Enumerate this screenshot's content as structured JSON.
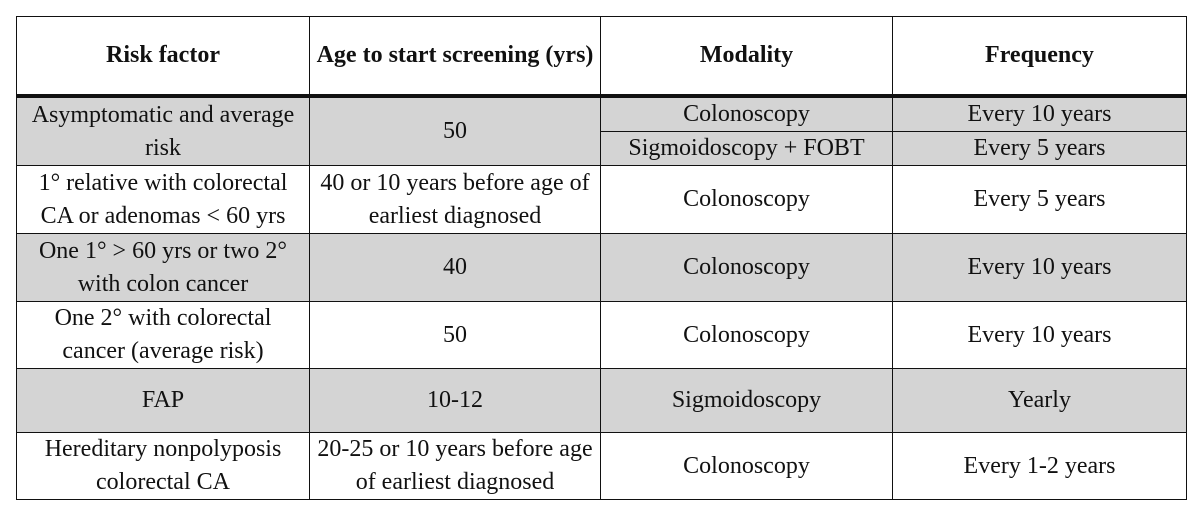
{
  "table": {
    "headers": [
      "Risk factor",
      "Age to start screening (yrs)",
      "Modality",
      "Frequency"
    ],
    "rows": [
      {
        "risk_factor": "Asymptomatic and average risk",
        "age": "50",
        "options": [
          {
            "modality": "Colonoscopy",
            "frequency": "Every 10 years"
          },
          {
            "modality": "Sigmoidoscopy + FOBT",
            "frequency": "Every 5 years"
          }
        ]
      },
      {
        "risk_factor": "1° relative with colorectal CA or adenomas < 60 yrs",
        "age": "40 or 10 years before age of earliest diagnosed",
        "modality": "Colonoscopy",
        "frequency": "Every 5 years"
      },
      {
        "risk_factor": "One 1° > 60 yrs or two 2° with colon cancer",
        "age": "40",
        "modality": "Colonoscopy",
        "frequency": "Every 10 years"
      },
      {
        "risk_factor": "One 2° with colorectal cancer (average risk)",
        "age": "50",
        "modality": "Colonoscopy",
        "frequency": "Every 10 years"
      },
      {
        "risk_factor": "FAP",
        "age": "10-12",
        "modality": "Sigmoidoscopy",
        "frequency": "Yearly"
      },
      {
        "risk_factor": "Hereditary nonpolyposis colorectal CA",
        "age": "20-25 or 10 years before age of earliest diagnosed",
        "modality": "Colonoscopy",
        "frequency": "Every 1-2 years"
      }
    ]
  },
  "colors": {
    "shaded_row": "#d4d4d4",
    "plain_row": "#ffffff",
    "border": "#111111"
  }
}
